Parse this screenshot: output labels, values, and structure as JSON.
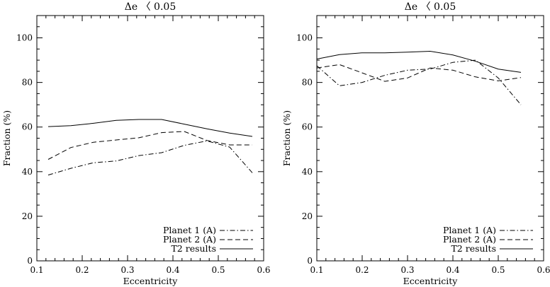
{
  "chart_data": [
    {
      "type": "line",
      "title": "Δe 〈 0.05",
      "xlabel": "Eccentricity",
      "ylabel": "Fraction (%)",
      "xlim": [
        0.1,
        0.6
      ],
      "ylim": [
        0,
        110
      ],
      "xticks": [
        "0.1",
        "0.2",
        "0.3",
        "0.4",
        "0.5",
        "0.6"
      ],
      "yticks": [
        "0",
        "20",
        "40",
        "60",
        "80",
        "100"
      ],
      "legend_position": "bottom-right",
      "grid": false,
      "series": [
        {
          "name": "Planet 1 (A)",
          "style": "dash-dot",
          "points": [
            [
              0.125,
              38.5
            ],
            [
              0.175,
              41.5
            ],
            [
              0.225,
              44.0
            ],
            [
              0.275,
              44.8
            ],
            [
              0.325,
              47.2
            ],
            [
              0.375,
              48.5
            ],
            [
              0.425,
              51.8
            ],
            [
              0.475,
              53.8
            ],
            [
              0.525,
              51.0
            ],
            [
              0.575,
              39.5
            ]
          ]
        },
        {
          "name": "Planet 2 (A)",
          "style": "dashed",
          "points": [
            [
              0.125,
              45.5
            ],
            [
              0.175,
              50.8
            ],
            [
              0.225,
              53.2
            ],
            [
              0.275,
              54.2
            ],
            [
              0.325,
              55.2
            ],
            [
              0.375,
              57.5
            ],
            [
              0.425,
              58.0
            ],
            [
              0.475,
              54.0
            ],
            [
              0.525,
              52.0
            ],
            [
              0.575,
              52.0
            ]
          ]
        },
        {
          "name": "T2 results",
          "style": "solid",
          "points": [
            [
              0.125,
              60.2
            ],
            [
              0.175,
              60.6
            ],
            [
              0.225,
              61.7
            ],
            [
              0.275,
              63.0
            ],
            [
              0.325,
              63.4
            ],
            [
              0.375,
              63.4
            ],
            [
              0.425,
              61.3
            ],
            [
              0.475,
              59.2
            ],
            [
              0.525,
              57.3
            ],
            [
              0.575,
              55.8
            ]
          ]
        }
      ]
    },
    {
      "type": "line",
      "title": "Δe 〈 0.05",
      "xlabel": "Eccentricity",
      "ylabel": "Fraction (%)",
      "xlim": [
        0.1,
        0.6
      ],
      "ylim": [
        0,
        110
      ],
      "xticks": [
        "0.1",
        "0.2",
        "0.3",
        "0.4",
        "0.5",
        "0.6"
      ],
      "yticks": [
        "0",
        "20",
        "40",
        "60",
        "80",
        "100"
      ],
      "legend_position": "bottom-right",
      "grid": false,
      "series": [
        {
          "name": "Planet 1 (A)",
          "style": "dash-dot",
          "points": [
            [
              0.1,
              87.5
            ],
            [
              0.15,
              78.5
            ],
            [
              0.2,
              80.0
            ],
            [
              0.25,
              83.2
            ],
            [
              0.3,
              85.5
            ],
            [
              0.35,
              86.0
            ],
            [
              0.4,
              89.0
            ],
            [
              0.45,
              90.0
            ],
            [
              0.5,
              82.0
            ],
            [
              0.55,
              70.0
            ]
          ]
        },
        {
          "name": "Planet 2 (A)",
          "style": "dashed",
          "points": [
            [
              0.1,
              86.5
            ],
            [
              0.15,
              88.0
            ],
            [
              0.2,
              84.3
            ],
            [
              0.25,
              80.5
            ],
            [
              0.3,
              82.0
            ],
            [
              0.35,
              86.5
            ],
            [
              0.4,
              85.5
            ],
            [
              0.45,
              82.5
            ],
            [
              0.5,
              80.7
            ],
            [
              0.55,
              82.2
            ]
          ]
        },
        {
          "name": "T2 results",
          "style": "solid",
          "points": [
            [
              0.1,
              90.5
            ],
            [
              0.15,
              92.5
            ],
            [
              0.2,
              93.3
            ],
            [
              0.25,
              93.3
            ],
            [
              0.3,
              93.6
            ],
            [
              0.35,
              94.0
            ],
            [
              0.4,
              92.3
            ],
            [
              0.45,
              89.5
            ],
            [
              0.5,
              86.0
            ],
            [
              0.55,
              84.5
            ]
          ]
        }
      ]
    }
  ]
}
